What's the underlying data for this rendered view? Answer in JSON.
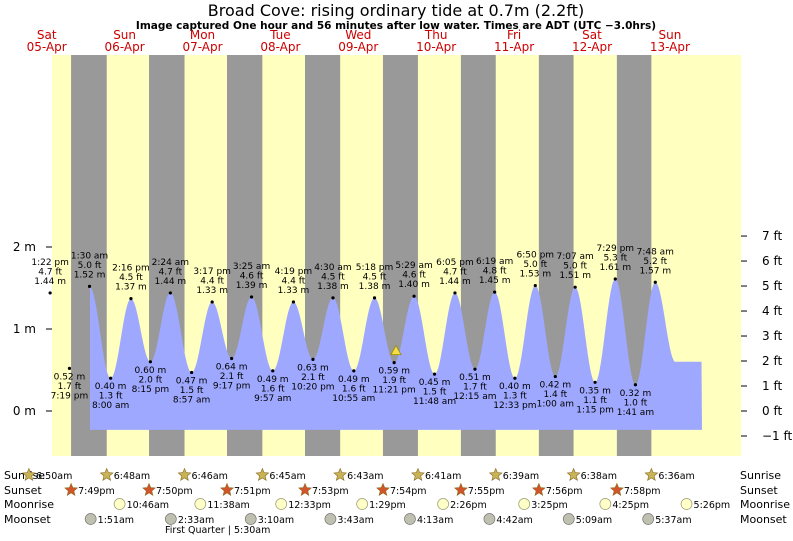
{
  "header": {
    "title": "Broad Cove: rising  ordinary tide at 0.7m (2.2ft)",
    "subtitle": "Image captured One hour and 56 minutes after low water. Times are ADT (UTC −3.0hrs)"
  },
  "colors": {
    "night": "#999999",
    "day": "#ffffc0",
    "tide": "#9fa8ff",
    "day_label": "#cc0000",
    "sunrise_star": "#c8b456",
    "sunset_star": "#d2552a",
    "moonrise": "#ffffc8",
    "moonset": "#c0c0b0"
  },
  "days": [
    {
      "name": "Sat",
      "date": "05-Apr"
    },
    {
      "name": "Sun",
      "date": "06-Apr"
    },
    {
      "name": "Mon",
      "date": "07-Apr"
    },
    {
      "name": "Tue",
      "date": "08-Apr"
    },
    {
      "name": "Wed",
      "date": "09-Apr"
    },
    {
      "name": "Thu",
      "date": "10-Apr"
    },
    {
      "name": "Fri",
      "date": "11-Apr"
    },
    {
      "name": "Sat",
      "date": "12-Apr"
    },
    {
      "name": "Sun",
      "date": "13-Apr"
    }
  ],
  "chart_data": {
    "type": "area",
    "y_left_unit": "m",
    "y_right_unit": "ft",
    "y_left_ticks": [
      "2 m",
      "1 m",
      "0 m"
    ],
    "y_right_ticks": [
      "7 ft",
      "6 ft",
      "5 ft",
      "4 ft",
      "3 ft",
      "2 ft",
      "1 ft",
      "0 ft",
      "−1 ft"
    ],
    "ylim_m": [
      -0.38,
      2.2
    ],
    "current": {
      "height_m": 0.7,
      "height_ft": 2.2,
      "state": "rising"
    },
    "extremes": [
      {
        "type": "high",
        "time": "1:22 pm",
        "ft": "4.7 ft",
        "m": "1.44 m",
        "value": 1.44
      },
      {
        "type": "low",
        "time": "7:19 pm",
        "ft": "1.7 ft",
        "m": "0.52 m",
        "value": 0.52
      },
      {
        "type": "high",
        "time": "1:30 am",
        "ft": "5.0 ft",
        "m": "1.52 m",
        "value": 1.52
      },
      {
        "type": "low",
        "time": "8:00 am",
        "ft": "1.3 ft",
        "m": "0.40 m",
        "value": 0.4
      },
      {
        "type": "high",
        "time": "2:16 pm",
        "ft": "4.5 ft",
        "m": "1.37 m",
        "value": 1.37
      },
      {
        "type": "low",
        "time": "8:15 pm",
        "ft": "2.0 ft",
        "m": "0.60 m",
        "value": 0.6
      },
      {
        "type": "high",
        "time": "2:24 am",
        "ft": "4.7 ft",
        "m": "1.44 m",
        "value": 1.44
      },
      {
        "type": "low",
        "time": "8:57 am",
        "ft": "1.5 ft",
        "m": "0.47 m",
        "value": 0.47
      },
      {
        "type": "high",
        "time": "3:17 pm",
        "ft": "4.4 ft",
        "m": "1.33 m",
        "value": 1.33
      },
      {
        "type": "low",
        "time": "9:17 pm",
        "ft": "2.1 ft",
        "m": "0.64 m",
        "value": 0.64
      },
      {
        "type": "high",
        "time": "3:25 am",
        "ft": "4.6 ft",
        "m": "1.39 m",
        "value": 1.39
      },
      {
        "type": "low",
        "time": "9:57 am",
        "ft": "1.6 ft",
        "m": "0.49 m",
        "value": 0.49
      },
      {
        "type": "high",
        "time": "4:19 pm",
        "ft": "4.4 ft",
        "m": "1.33 m",
        "value": 1.33
      },
      {
        "type": "low",
        "time": "10:20 pm",
        "ft": "2.1 ft",
        "m": "0.63 m",
        "value": 0.63
      },
      {
        "type": "high",
        "time": "4:30 am",
        "ft": "4.5 ft",
        "m": "1.38 m",
        "value": 1.38
      },
      {
        "type": "low",
        "time": "10:55 am",
        "ft": "1.6 ft",
        "m": "0.49 m",
        "value": 0.49
      },
      {
        "type": "high",
        "time": "5:18 pm",
        "ft": "4.5 ft",
        "m": "1.38 m",
        "value": 1.38
      },
      {
        "type": "low",
        "time": "11:21 pm",
        "ft": "1.9 ft",
        "m": "0.59 m",
        "value": 0.59
      },
      {
        "type": "high",
        "time": "5:29 am",
        "ft": "4.6 ft",
        "m": "1.40 m",
        "value": 1.4
      },
      {
        "type": "low",
        "time": "11:48 am",
        "ft": "1.5 ft",
        "m": "0.45 m",
        "value": 0.45
      },
      {
        "type": "high",
        "time": "6:05 pm",
        "ft": "4.7 ft",
        "m": "1.44 m",
        "value": 1.44
      },
      {
        "type": "low",
        "time": "12:15 am",
        "ft": "1.7 ft",
        "m": "0.51 m",
        "value": 0.51
      },
      {
        "type": "high",
        "time": "6:19 am",
        "ft": "4.8 ft",
        "m": "1.45 m",
        "value": 1.45
      },
      {
        "type": "low",
        "time": "12:33 pm",
        "ft": "1.3 ft",
        "m": "0.40 m",
        "value": 0.4
      },
      {
        "type": "high",
        "time": "6:50 pm",
        "ft": "5.0 ft",
        "m": "1.53 m",
        "value": 1.53
      },
      {
        "type": "low",
        "time": "1:00 am",
        "ft": "1.4 ft",
        "m": "0.42 m",
        "value": 0.42
      },
      {
        "type": "high",
        "time": "7:07 am",
        "ft": "5.0 ft",
        "m": "1.51 m",
        "value": 1.51
      },
      {
        "type": "low",
        "time": "1:15 pm",
        "ft": "1.1 ft",
        "m": "0.35 m",
        "value": 0.35
      },
      {
        "type": "high",
        "time": "7:29 pm",
        "ft": "5.3 ft",
        "m": "1.61 m",
        "value": 1.61
      },
      {
        "type": "low",
        "time": "1:41 am",
        "ft": "1.0 ft",
        "m": "0.32 m",
        "value": 0.32
      },
      {
        "type": "high",
        "time": "7:48 am",
        "ft": "5.2 ft",
        "m": "1.57 m",
        "value": 1.57
      }
    ]
  },
  "rows": {
    "sunrise_label": "Sunrise",
    "sunset_label": "Sunset",
    "moonrise_label": "Moonrise",
    "moonset_label": "Moonset",
    "sunrise": [
      "6:50am",
      "6:48am",
      "6:46am",
      "6:45am",
      "6:43am",
      "6:41am",
      "6:39am",
      "6:38am",
      "6:36am"
    ],
    "sunset": [
      "7:49pm",
      "7:50pm",
      "7:51pm",
      "7:53pm",
      "7:54pm",
      "7:55pm",
      "7:56pm",
      "7:58pm"
    ],
    "moonrise": [
      "10:46am",
      "11:38am",
      "12:33pm",
      "1:29pm",
      "2:26pm",
      "3:25pm",
      "4:25pm",
      "5:26pm"
    ],
    "moonset": [
      "1:51am",
      "2:33am",
      "3:10am",
      "3:43am",
      "4:13am",
      "4:42am",
      "5:09am",
      "5:37am"
    ],
    "phase_note": "First Quarter | 5:30am"
  }
}
